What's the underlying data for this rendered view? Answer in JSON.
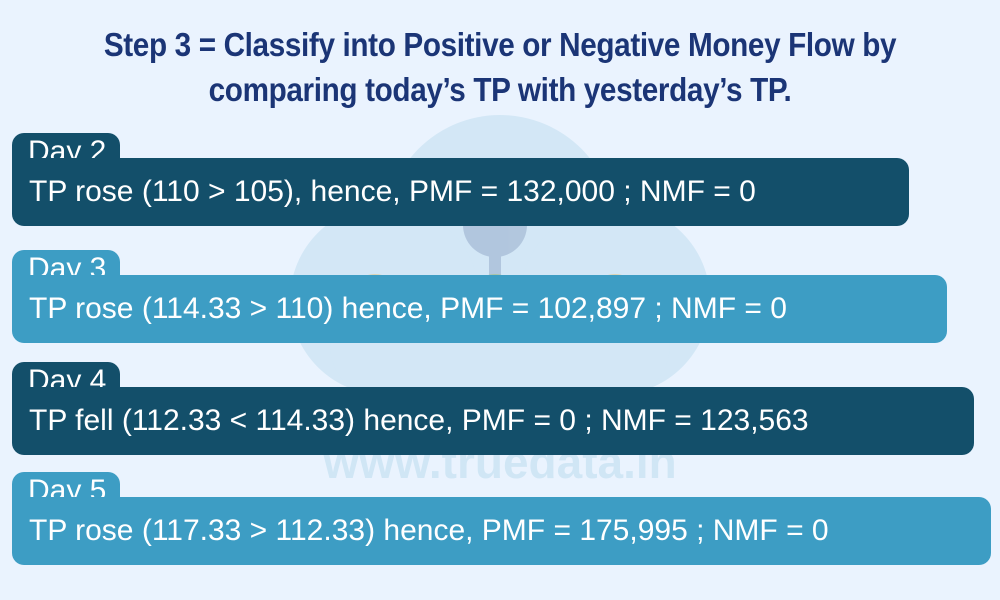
{
  "title": {
    "line1": "Step 3 = Classify into Positive or Negative Money Flow by",
    "line2": "comparing today’s TP with yesterday’s TP."
  },
  "watermark": {
    "text": "www.truedata.in"
  },
  "rows": [
    {
      "label": "Day 2",
      "text": "TP rose (110 > 105), hence, PMF = 132,000 ; NMF = 0"
    },
    {
      "label": "Day 3",
      "text": "TP rose (114.33 > 110) hence, PMF = 102,897 ; NMF = 0"
    },
    {
      "label": "Day 4",
      "text": "TP fell (112.33 < 114.33) hence, PMF = 0 ; NMF = 123,563"
    },
    {
      "label": "Day 5",
      "text": "TP rose (117.33 > 112.33) hence, PMF = 175,995 ; NMF = 0"
    }
  ],
  "colors": {
    "background": "#eaf3fe",
    "title": "#1b3576",
    "dark_bar": "#134f6a",
    "light_bar": "#3d9dc4"
  }
}
